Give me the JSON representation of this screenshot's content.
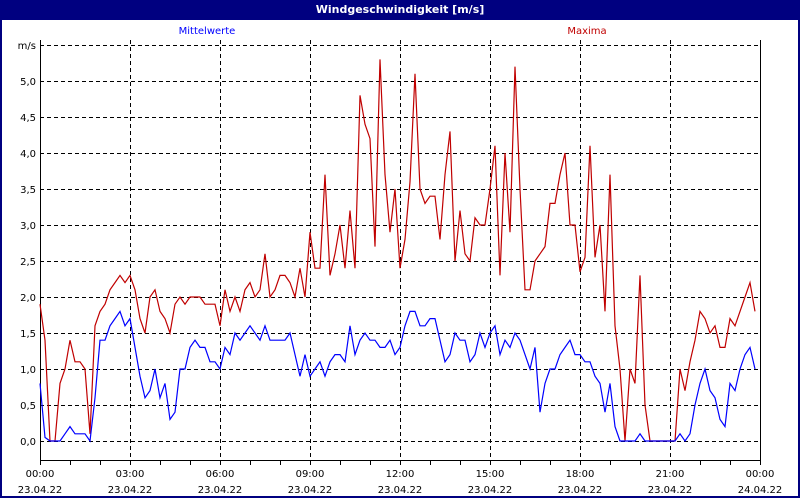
{
  "window": {
    "title": "Windgeschwindigkeit [m/s]"
  },
  "chart_data": {
    "type": "line",
    "title": "Windgeschwindigkeit [m/s]",
    "ylabel": "m/s",
    "ylim": [
      0,
      5.5
    ],
    "yticks": [
      "0,0",
      "0,5",
      "1,0",
      "1,5",
      "2,0",
      "2,5",
      "3,0",
      "3,5",
      "4,0",
      "4,5",
      "5,0"
    ],
    "yticks_values": [
      0,
      0.5,
      1,
      1.5,
      2,
      2.5,
      3,
      3.5,
      4,
      4.5,
      5
    ],
    "xlim": [
      "23.04.22 00:00",
      "24.04.22 00:00"
    ],
    "xticks": [
      {
        "time": "00:00",
        "date": "23.04.22"
      },
      {
        "time": "03:00",
        "date": "23.04.22"
      },
      {
        "time": "06:00",
        "date": "23.04.22"
      },
      {
        "time": "09:00",
        "date": "23.04.22"
      },
      {
        "time": "12:00",
        "date": "23.04.22"
      },
      {
        "time": "15:00",
        "date": "23.04.22"
      },
      {
        "time": "18:00",
        "date": "23.04.22"
      },
      {
        "time": "21:00",
        "date": "23.04.22"
      },
      {
        "time": "00:00",
        "date": "24.04.22"
      }
    ],
    "grid": true,
    "grid_style": "dashed",
    "legend_placement": "top",
    "x": [
      "00:00",
      "00:10",
      "00:20",
      "00:30",
      "00:40",
      "00:50",
      "01:00",
      "01:10",
      "01:20",
      "01:30",
      "01:40",
      "01:50",
      "02:00",
      "02:10",
      "02:20",
      "02:30",
      "02:40",
      "02:50",
      "03:00",
      "03:10",
      "03:20",
      "03:30",
      "03:40",
      "03:50",
      "04:00",
      "04:10",
      "04:20",
      "04:30",
      "04:40",
      "04:50",
      "05:00",
      "05:10",
      "05:20",
      "05:30",
      "05:40",
      "05:50",
      "06:00",
      "06:10",
      "06:20",
      "06:30",
      "06:40",
      "06:50",
      "07:00",
      "07:10",
      "07:20",
      "07:30",
      "07:40",
      "07:50",
      "08:00",
      "08:10",
      "08:20",
      "08:30",
      "08:40",
      "08:50",
      "09:00",
      "09:10",
      "09:20",
      "09:30",
      "09:40",
      "09:50",
      "10:00",
      "10:10",
      "10:20",
      "10:30",
      "10:40",
      "10:50",
      "11:00",
      "11:10",
      "11:20",
      "11:30",
      "11:40",
      "11:50",
      "12:00",
      "12:10",
      "12:20",
      "12:30",
      "12:40",
      "12:50",
      "13:00",
      "13:10",
      "13:20",
      "13:30",
      "13:40",
      "13:50",
      "14:00",
      "14:10",
      "14:20",
      "14:30",
      "14:40",
      "14:50",
      "15:00",
      "15:10",
      "15:20",
      "15:30",
      "15:40",
      "15:50",
      "16:00",
      "16:10",
      "16:20",
      "16:30",
      "16:40",
      "16:50",
      "17:00",
      "17:10",
      "17:20",
      "17:30",
      "17:40",
      "17:50",
      "18:00",
      "18:10",
      "18:20",
      "18:30",
      "18:40",
      "18:50",
      "19:00",
      "19:10",
      "19:20",
      "19:30",
      "19:40",
      "19:50",
      "20:00",
      "20:10",
      "20:20",
      "20:30",
      "20:40",
      "20:50",
      "21:00",
      "21:10",
      "21:20",
      "21:30",
      "21:40",
      "21:50",
      "22:00",
      "22:10",
      "22:20",
      "22:30",
      "22:40",
      "22:50",
      "23:00",
      "23:10",
      "23:20",
      "23:30",
      "23:40",
      "23:50"
    ],
    "series": [
      {
        "name": "Mittelwerte",
        "color": "#0000ff",
        "values": [
          0.8,
          0.05,
          0,
          0,
          0,
          0.1,
          0.2,
          0.1,
          0.1,
          0.1,
          0,
          0.6,
          1.4,
          1.4,
          1.6,
          1.7,
          1.8,
          1.6,
          1.7,
          1.3,
          0.9,
          0.6,
          0.7,
          1.0,
          0.6,
          0.8,
          0.3,
          0.4,
          1.0,
          1.0,
          1.3,
          1.4,
          1.3,
          1.3,
          1.1,
          1.1,
          1.0,
          1.3,
          1.2,
          1.5,
          1.4,
          1.5,
          1.6,
          1.5,
          1.4,
          1.6,
          1.4,
          1.4,
          1.4,
          1.4,
          1.5,
          1.2,
          0.9,
          1.2,
          0.9,
          1.0,
          1.1,
          0.9,
          1.1,
          1.2,
          1.2,
          1.1,
          1.6,
          1.2,
          1.4,
          1.5,
          1.4,
          1.4,
          1.3,
          1.3,
          1.4,
          1.2,
          1.3,
          1.6,
          1.8,
          1.8,
          1.6,
          1.6,
          1.7,
          1.7,
          1.4,
          1.1,
          1.2,
          1.5,
          1.4,
          1.4,
          1.1,
          1.2,
          1.5,
          1.3,
          1.5,
          1.6,
          1.2,
          1.4,
          1.3,
          1.5,
          1.4,
          1.2,
          1.0,
          1.3,
          0.4,
          0.8,
          1.0,
          1.0,
          1.2,
          1.3,
          1.4,
          1.2,
          1.2,
          1.1,
          1.1,
          0.9,
          0.8,
          0.4,
          0.8,
          0.2,
          0,
          0,
          0,
          0,
          0.1,
          0,
          0,
          0,
          0,
          0,
          0,
          0,
          0.1,
          0,
          0.1,
          0.5,
          0.8,
          1.0,
          0.7,
          0.6,
          0.3,
          0.2,
          0.8,
          0.7,
          1.0,
          1.2,
          1.3,
          1.0
        ]
      },
      {
        "name": "Maxima",
        "color": "#c00000",
        "values": [
          1.9,
          1.4,
          0,
          0,
          0.8,
          1.0,
          1.4,
          1.1,
          1.1,
          1.0,
          0.1,
          1.6,
          1.8,
          1.9,
          2.1,
          2.2,
          2.3,
          2.2,
          2.3,
          2.1,
          1.7,
          1.5,
          2.0,
          2.1,
          1.8,
          1.7,
          1.5,
          1.9,
          2.0,
          1.9,
          2.0,
          2.0,
          2.0,
          1.9,
          1.9,
          1.9,
          1.6,
          2.1,
          1.8,
          2.0,
          1.8,
          2.1,
          2.2,
          2.0,
          2.1,
          2.6,
          2.0,
          2.1,
          2.3,
          2.3,
          2.2,
          2.0,
          2.4,
          2.0,
          2.9,
          2.4,
          2.4,
          3.7,
          2.3,
          2.6,
          3.0,
          2.4,
          3.2,
          2.4,
          4.8,
          4.4,
          4.2,
          2.7,
          5.3,
          3.7,
          2.9,
          3.5,
          2.4,
          2.8,
          3.6,
          5.1,
          3.5,
          3.3,
          3.4,
          3.4,
          2.8,
          3.7,
          4.3,
          2.5,
          3.2,
          2.6,
          2.5,
          3.1,
          3.0,
          3.0,
          3.5,
          4.1,
          2.3,
          4.0,
          2.9,
          5.2,
          3.5,
          2.1,
          2.1,
          2.5,
          2.6,
          2.7,
          3.3,
          3.3,
          3.7,
          4.0,
          3.0,
          3.0,
          2.35,
          2.55,
          4.1,
          2.55,
          3.0,
          1.8,
          3.7,
          1.6,
          1.0,
          0,
          1.0,
          0.8,
          2.3,
          0.5,
          0,
          0,
          0,
          0,
          0,
          0,
          1.0,
          0.7,
          1.1,
          1.4,
          1.8,
          1.7,
          1.5,
          1.6,
          1.3,
          1.3,
          1.7,
          1.6,
          1.8,
          2.0,
          2.2,
          1.8
        ]
      }
    ]
  }
}
